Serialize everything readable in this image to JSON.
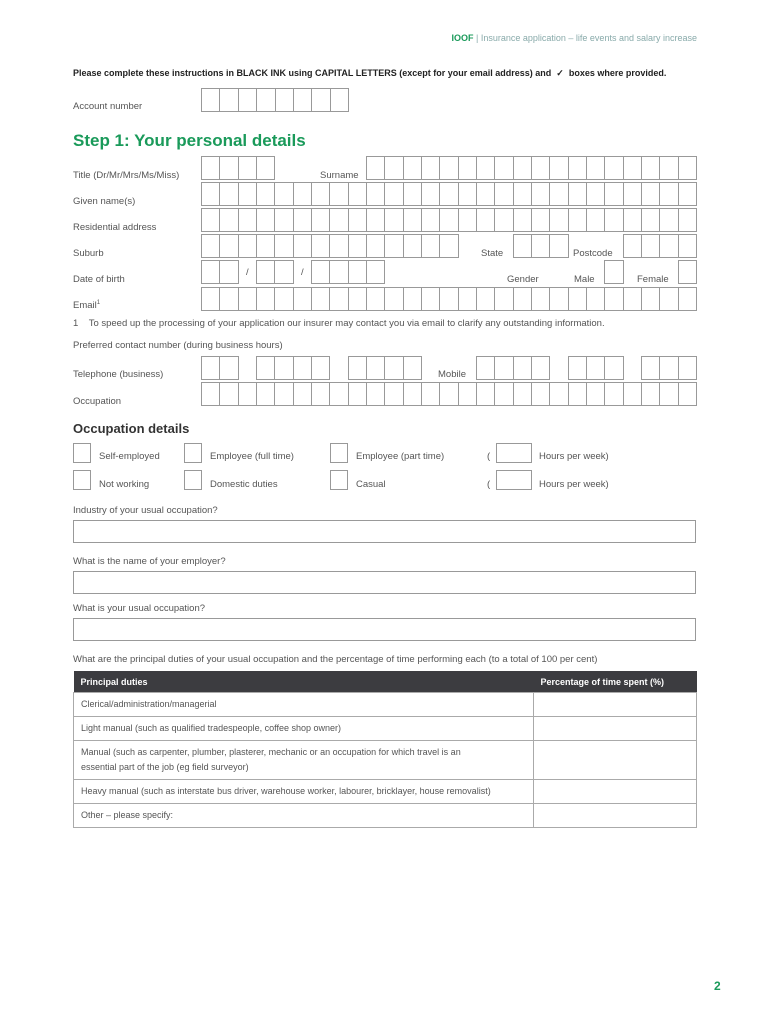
{
  "header": {
    "brand": "IOOF",
    "separator": "|",
    "doc_title": "Insurance application – life events and salary increase"
  },
  "instructions": {
    "text_before": "Please complete these instructions in BLACK INK using CAPITAL LETTERS (except for your email address) and",
    "tick": "✓",
    "text_after": "boxes where provided."
  },
  "account": {
    "label": "Account number"
  },
  "step1": {
    "title": "Step 1: Your personal details",
    "title_label": "Title (Dr/Mr/Mrs/Ms/Miss)",
    "surname": "Surname",
    "given": "Given name(s)",
    "address": "Residential address",
    "suburb": "Suburb",
    "state": "State",
    "postcode": "Postcode",
    "dob": "Date of birth",
    "slash": "/",
    "gender": "Gender",
    "male": "Male",
    "female": "Female",
    "email": "Email",
    "email_sup": "1",
    "footnote_num": "1",
    "footnote": "To speed up the processing of your application our insurer may contact you via email to clarify any outstanding information.",
    "preferred": "Preferred contact number (during business hours)",
    "telephone": "Telephone (business)",
    "mobile": "Mobile",
    "occupation": "Occupation"
  },
  "occ": {
    "title": "Occupation details",
    "options": [
      "Self-employed",
      "Employee (full time)",
      "Employee (part time)",
      "Not working",
      "Domestic duties",
      "Casual"
    ],
    "paren": "(",
    "hours": "Hours per week)",
    "q1": "Industry of your usual occupation?",
    "q2": "What is the name of your employer?",
    "q3": "What is your usual occupation?",
    "q4": "What are the principal duties of your usual occupation and the percentage of time performing each (to a total of 100 per cent)"
  },
  "table": {
    "headers": [
      "Principal duties",
      "Percentage of time spent (%)"
    ],
    "rows": [
      "Clerical/administration/managerial",
      "Light manual (such as qualified tradespeople, coffee shop owner)",
      "Manual (such as carpenter, plumber, plasterer, mechanic or an occupation for which travel is an essential part of the job (eg field surveyor)",
      "Heavy manual (such as interstate bus driver, warehouse worker, labourer, bricklayer, house removalist)",
      "Other – please specify:"
    ]
  },
  "page_number": "2",
  "colors": {
    "brand": "#1a9a5a",
    "table_header": "#3c3c40"
  }
}
